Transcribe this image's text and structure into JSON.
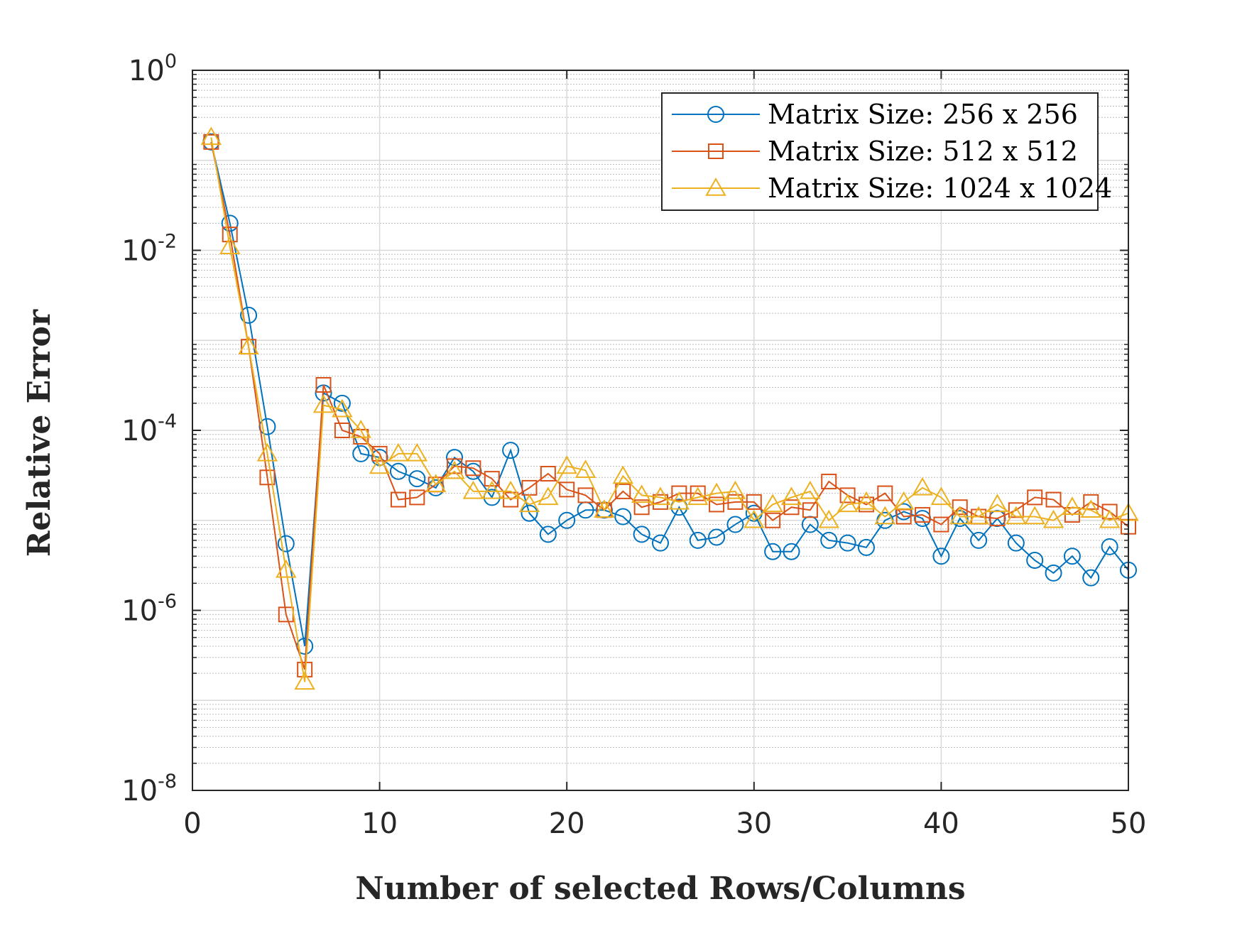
{
  "chart_data": {
    "type": "line",
    "title": "",
    "xlabel": "Number of selected Rows/Columns",
    "ylabel": "Relative Error",
    "xlim": [
      0,
      50
    ],
    "ylim": [
      1e-08,
      1
    ],
    "yscale": "log",
    "grid": true,
    "minor_grid": true,
    "legend_position": "top-right",
    "x_ticks": [
      {
        "value": 0,
        "label": "0"
      },
      {
        "value": 10,
        "label": "10"
      },
      {
        "value": 20,
        "label": "20"
      },
      {
        "value": 30,
        "label": "30"
      },
      {
        "value": 40,
        "label": "40"
      },
      {
        "value": 50,
        "label": "50"
      }
    ],
    "y_ticks": [
      {
        "value": 1,
        "base": "10",
        "exponent": "0"
      },
      {
        "value": 0.01,
        "base": "10",
        "exponent": "-2"
      },
      {
        "value": 0.0001,
        "base": "10",
        "exponent": "-4"
      },
      {
        "value": 1e-06,
        "base": "10",
        "exponent": "-6"
      },
      {
        "value": 1e-08,
        "base": "10",
        "exponent": "-8"
      }
    ],
    "x": [
      1,
      2,
      3,
      4,
      5,
      6,
      7,
      8,
      9,
      10,
      11,
      12,
      13,
      14,
      15,
      16,
      17,
      18,
      19,
      20,
      21,
      22,
      23,
      24,
      25,
      26,
      27,
      28,
      29,
      30,
      31,
      32,
      33,
      34,
      35,
      36,
      37,
      38,
      39,
      40,
      41,
      42,
      43,
      44,
      45,
      46,
      47,
      48,
      49,
      50
    ],
    "series": [
      {
        "name": "Matrix Size: 256 x 256",
        "color": "#0072BD",
        "marker": "circle",
        "values": [
          0.16,
          0.02,
          0.0019,
          0.00011,
          5.5e-06,
          4e-07,
          0.00026,
          0.0002,
          5.5e-05,
          5e-05,
          3.5e-05,
          2.9e-05,
          2.3e-05,
          5e-05,
          3.5e-05,
          1.8e-05,
          6e-05,
          1.2e-05,
          7e-06,
          1e-05,
          1.3e-05,
          1.3e-05,
          1.1e-05,
          7e-06,
          5.6e-06,
          1.4e-05,
          6e-06,
          6.5e-06,
          9e-06,
          1.2e-05,
          4.5e-06,
          4.5e-06,
          9e-06,
          6e-06,
          5.6e-06,
          5e-06,
          1e-05,
          1.25e-05,
          1.05e-05,
          4e-06,
          1.05e-05,
          6e-06,
          1.05e-05,
          5.6e-06,
          3.6e-06,
          2.6e-06,
          4e-06,
          2.3e-06,
          5.1e-06,
          2.8e-06
        ]
      },
      {
        "name": "Matrix Size: 512 x 512",
        "color": "#D95319",
        "marker": "square",
        "values": [
          0.16,
          0.015,
          0.00085,
          3e-05,
          9e-07,
          2.2e-07,
          0.00032,
          0.0001,
          8.5e-05,
          5.5e-05,
          1.7e-05,
          1.8e-05,
          2.5e-05,
          4e-05,
          3.8e-05,
          2.9e-05,
          1.7e-05,
          2.3e-05,
          3.3e-05,
          2.2e-05,
          1.9e-05,
          1.3e-05,
          2.1e-05,
          1.4e-05,
          1.6e-05,
          2e-05,
          2e-05,
          1.5e-05,
          1.6e-05,
          1.6e-05,
          1e-05,
          1.4e-05,
          1.3e-05,
          2.7e-05,
          1.9e-05,
          1.5e-05,
          2e-05,
          1.1e-05,
          1.15e-05,
          9e-06,
          1.4e-05,
          1.1e-05,
          1.05e-05,
          1.3e-05,
          1.8e-05,
          1.7e-05,
          1.15e-05,
          1.6e-05,
          1.25e-05,
          8.5e-06
        ]
      },
      {
        "name": "Matrix Size: 1024 x 1024",
        "color": "#EDB120",
        "marker": "triangle",
        "values": [
          0.18,
          0.011,
          0.00085,
          5.5e-05,
          2.8e-06,
          1.6e-07,
          0.00019,
          0.00017,
          0.0001,
          4e-05,
          5.5e-05,
          5.5e-05,
          2.5e-05,
          3.5e-05,
          2.1e-05,
          2.1e-05,
          2.1e-05,
          1.5e-05,
          1.8e-05,
          4e-05,
          3.6e-05,
          1.3e-05,
          3.1e-05,
          1.9e-05,
          1.8e-05,
          1.6e-05,
          1.8e-05,
          2e-05,
          2.1e-05,
          1e-05,
          1.5e-05,
          1.8e-05,
          2.1e-05,
          1e-05,
          1.5e-05,
          1.6e-05,
          1.1e-05,
          1.6e-05,
          2.3e-05,
          1.8e-05,
          1.1e-05,
          1.1e-05,
          1.5e-05,
          1.1e-05,
          1.1e-05,
          1e-05,
          1.4e-05,
          1.3e-05,
          1e-05,
          1.2e-05
        ]
      }
    ]
  }
}
